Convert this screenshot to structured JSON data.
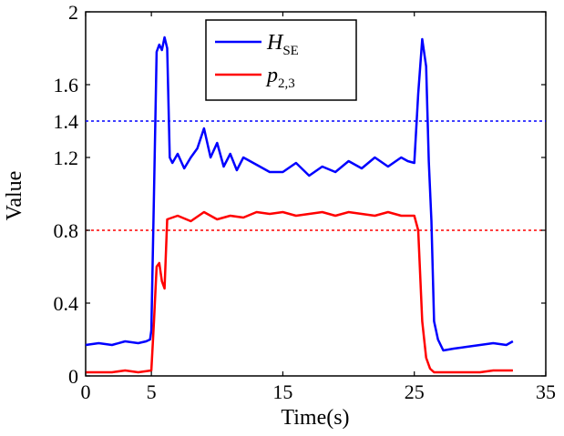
{
  "chart_data": {
    "type": "line",
    "xlabel": "Time(s)",
    "ylabel": "Value",
    "xlim": [
      0,
      35
    ],
    "ylim": [
      0,
      2
    ],
    "xticks": [
      0,
      5,
      15,
      25,
      35
    ],
    "yticks": [
      0,
      0.4,
      0.8,
      1.2,
      1.6,
      2
    ],
    "ytick_labels": [
      "0",
      "0.4",
      "0.8",
      "1.2",
      "1.6",
      "2"
    ],
    "legend_position": "top-center",
    "series": [
      {
        "name": "H",
        "name_sub": "SE",
        "color": "#0000ff",
        "points": [
          [
            0,
            0.17
          ],
          [
            1,
            0.18
          ],
          [
            2,
            0.17
          ],
          [
            3,
            0.19
          ],
          [
            4,
            0.18
          ],
          [
            4.6,
            0.19
          ],
          [
            4.9,
            0.2
          ],
          [
            5.0,
            0.25
          ],
          [
            5.2,
            1.0
          ],
          [
            5.4,
            1.78
          ],
          [
            5.6,
            1.82
          ],
          [
            5.8,
            1.79
          ],
          [
            6.0,
            1.86
          ],
          [
            6.2,
            1.8
          ],
          [
            6.4,
            1.2
          ],
          [
            6.6,
            1.17
          ],
          [
            7,
            1.22
          ],
          [
            7.5,
            1.14
          ],
          [
            8,
            1.2
          ],
          [
            8.5,
            1.25
          ],
          [
            9,
            1.36
          ],
          [
            9.5,
            1.2
          ],
          [
            10,
            1.28
          ],
          [
            10.5,
            1.15
          ],
          [
            11,
            1.22
          ],
          [
            11.5,
            1.13
          ],
          [
            12,
            1.2
          ],
          [
            13,
            1.16
          ],
          [
            14,
            1.12
          ],
          [
            15,
            1.12
          ],
          [
            16,
            1.17
          ],
          [
            17,
            1.1
          ],
          [
            18,
            1.15
          ],
          [
            19,
            1.12
          ],
          [
            20,
            1.18
          ],
          [
            21,
            1.14
          ],
          [
            22,
            1.2
          ],
          [
            23,
            1.15
          ],
          [
            24,
            1.2
          ],
          [
            24.5,
            1.18
          ],
          [
            25,
            1.17
          ],
          [
            25.3,
            1.55
          ],
          [
            25.6,
            1.85
          ],
          [
            25.9,
            1.7
          ],
          [
            26.1,
            1.18
          ],
          [
            26.3,
            0.85
          ],
          [
            26.5,
            0.3
          ],
          [
            26.8,
            0.2
          ],
          [
            27.2,
            0.14
          ],
          [
            28,
            0.15
          ],
          [
            29,
            0.16
          ],
          [
            30,
            0.17
          ],
          [
            31,
            0.18
          ],
          [
            32,
            0.17
          ],
          [
            32.5,
            0.19
          ]
        ]
      },
      {
        "name": "p",
        "name_sub": "2,3",
        "color": "#ff0000",
        "points": [
          [
            0,
            0.02
          ],
          [
            1,
            0.02
          ],
          [
            2,
            0.02
          ],
          [
            3,
            0.03
          ],
          [
            4,
            0.02
          ],
          [
            5.0,
            0.03
          ],
          [
            5.2,
            0.3
          ],
          [
            5.4,
            0.6
          ],
          [
            5.6,
            0.62
          ],
          [
            5.8,
            0.52
          ],
          [
            6.0,
            0.48
          ],
          [
            6.2,
            0.86
          ],
          [
            7,
            0.88
          ],
          [
            8,
            0.85
          ],
          [
            9,
            0.9
          ],
          [
            10,
            0.86
          ],
          [
            11,
            0.88
          ],
          [
            12,
            0.87
          ],
          [
            13,
            0.9
          ],
          [
            14,
            0.89
          ],
          [
            15,
            0.9
          ],
          [
            16,
            0.88
          ],
          [
            17,
            0.89
          ],
          [
            18,
            0.9
          ],
          [
            19,
            0.88
          ],
          [
            20,
            0.9
          ],
          [
            21,
            0.89
          ],
          [
            22,
            0.88
          ],
          [
            23,
            0.9
          ],
          [
            24,
            0.88
          ],
          [
            25,
            0.88
          ],
          [
            25.3,
            0.8
          ],
          [
            25.6,
            0.3
          ],
          [
            25.9,
            0.1
          ],
          [
            26.2,
            0.04
          ],
          [
            26.5,
            0.02
          ],
          [
            27,
            0.02
          ],
          [
            28,
            0.02
          ],
          [
            29,
            0.02
          ],
          [
            30,
            0.02
          ],
          [
            31,
            0.03
          ],
          [
            32.5,
            0.03
          ]
        ]
      }
    ],
    "thresholds": [
      {
        "value": 1.4,
        "label": "1.4",
        "color": "#0000ff",
        "style": "dotted"
      },
      {
        "value": 0.8,
        "label": "0.8",
        "color": "#ff0000",
        "style": "dotted"
      }
    ]
  }
}
